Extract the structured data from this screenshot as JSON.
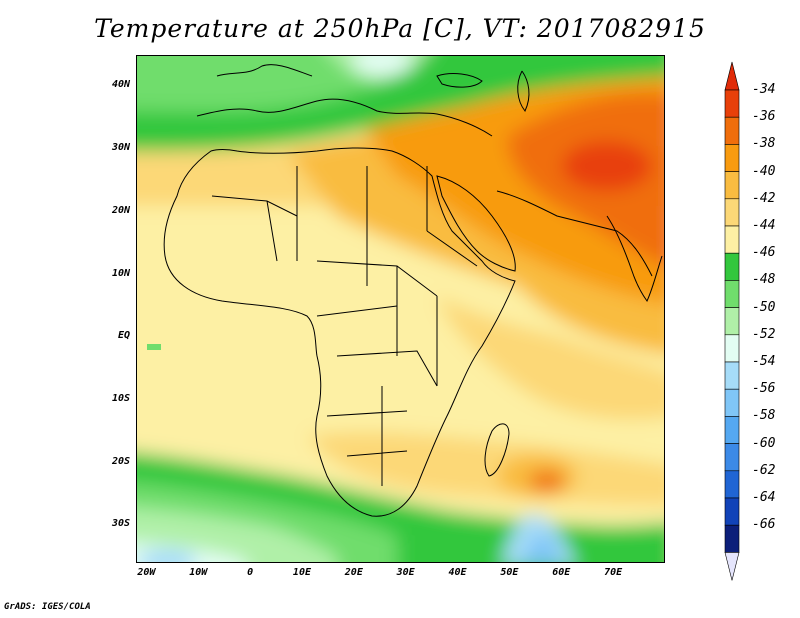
{
  "title": "Temperature at 250hPa [C], VT: 2017082915",
  "credit": "GrADS: IGES/COLA",
  "map": {
    "lon_range": [
      -22,
      80
    ],
    "lat_range": [
      -36,
      45
    ],
    "lat_ticks": [
      {
        "value": 40,
        "label": "40N"
      },
      {
        "value": 30,
        "label": "30N"
      },
      {
        "value": 20,
        "label": "20N"
      },
      {
        "value": 10,
        "label": "10N"
      },
      {
        "value": 0,
        "label": "EQ"
      },
      {
        "value": -10,
        "label": "10S"
      },
      {
        "value": -20,
        "label": "20S"
      },
      {
        "value": -30,
        "label": "30S"
      }
    ],
    "lon_ticks": [
      {
        "value": -20,
        "label": "20W"
      },
      {
        "value": -10,
        "label": "10W"
      },
      {
        "value": 0,
        "label": "0"
      },
      {
        "value": 10,
        "label": "10E"
      },
      {
        "value": 20,
        "label": "20E"
      },
      {
        "value": 30,
        "label": "30E"
      },
      {
        "value": 40,
        "label": "40E"
      },
      {
        "value": 50,
        "label": "50E"
      },
      {
        "value": 60,
        "label": "60E"
      },
      {
        "value": 70,
        "label": "70E"
      }
    ]
  },
  "colorbar": {
    "labels": [
      "-34",
      "-36",
      "-38",
      "-40",
      "-42",
      "-44",
      "-46",
      "-48",
      "-50",
      "-52",
      "-54",
      "-56",
      "-58",
      "-60",
      "-62",
      "-64",
      "-66"
    ],
    "colors": [
      "#e8400a",
      "#f06e0c",
      "#f89b10",
      "#f9bc41",
      "#fcd877",
      "#fdf0a4",
      "#33c73d",
      "#70dd6c",
      "#b0f0a8",
      "#e3fdf3",
      "#a6dcf8",
      "#80c6f7",
      "#55a8f1",
      "#3c8ae7",
      "#2065d4",
      "#1143b8",
      "#0c1f7a"
    ],
    "top_triangle_color": "#e12b08",
    "bottom_triangle_color": "#e5e5fc"
  }
}
